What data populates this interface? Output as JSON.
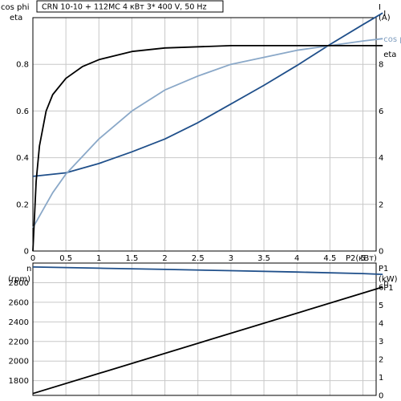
{
  "chart_data": [
    {
      "type": "line",
      "title": "CRN 10-10 + 112MC    4 кВт    3* 400 V, 50 Hz",
      "xlabel": "P2(кВт)",
      "x_ticks": [
        "0",
        "0.5",
        "1",
        "1.5",
        "2",
        "2.5",
        "3",
        "3.5",
        "4",
        "4.5",
        "5"
      ],
      "xlim": [
        0,
        5.2
      ],
      "left_axis": {
        "labels": [
          "cos phi",
          "eta"
        ],
        "ylim": [
          0,
          1.0
        ],
        "ticks": [
          "0",
          "0.2",
          "0.4",
          "0.6",
          "0.8"
        ]
      },
      "right_axis": {
        "labels": [
          "I",
          "(A)"
        ],
        "ylim": [
          0,
          10
        ],
        "ticks": [
          "0",
          "2",
          "4",
          "6",
          "8"
        ]
      },
      "grid": true,
      "series": [
        {
          "name": "I",
          "axis": "right",
          "color": "#1f4f8a",
          "x": [
            0,
            0.5,
            1,
            1.5,
            2,
            2.5,
            3,
            3.5,
            4,
            4.5,
            5,
            5.3
          ],
          "y": [
            3.2,
            3.35,
            3.75,
            4.25,
            4.8,
            5.5,
            6.3,
            7.1,
            7.95,
            8.85,
            9.7,
            10.2
          ]
        },
        {
          "name": "cos phi",
          "axis": "left",
          "color": "#8aa8c8",
          "x": [
            0,
            0.1,
            0.3,
            0.5,
            1,
            1.5,
            2,
            2.5,
            3,
            3.5,
            4,
            4.5,
            5,
            5.3
          ],
          "y": [
            0.1,
            0.15,
            0.25,
            0.33,
            0.48,
            0.6,
            0.69,
            0.75,
            0.8,
            0.83,
            0.86,
            0.88,
            0.9,
            0.91
          ]
        },
        {
          "name": "eta",
          "axis": "left",
          "color": "#000000",
          "x": [
            0,
            0.05,
            0.1,
            0.2,
            0.3,
            0.5,
            0.75,
            1,
            1.5,
            2,
            3,
            4,
            5,
            5.3
          ],
          "y": [
            0,
            0.3,
            0.45,
            0.6,
            0.67,
            0.74,
            0.79,
            0.82,
            0.855,
            0.87,
            0.88,
            0.88,
            0.88,
            0.88
          ]
        }
      ]
    },
    {
      "type": "line",
      "xlim": [
        0,
        5.2
      ],
      "left_axis": {
        "labels": [
          "n",
          "(rpm)"
        ],
        "ylim": [
          1650,
          3000
        ],
        "ticks": [
          "1800",
          "2000",
          "2200",
          "2400",
          "2600",
          "2800"
        ]
      },
      "right_axis": {
        "labels": [
          "P1",
          "(kW)"
        ],
        "ylim": [
          0,
          7.33
        ],
        "ticks": [
          "0",
          "1",
          "2",
          "3",
          "4",
          "5",
          "6"
        ]
      },
      "grid": true,
      "series": [
        {
          "name": "n",
          "axis": "left",
          "color": "#1f4f8a",
          "x": [
            0,
            1,
            2,
            3,
            4,
            5,
            5.3
          ],
          "y": [
            2960,
            2948,
            2935,
            2922,
            2908,
            2893,
            2885
          ]
        },
        {
          "name": "P1",
          "axis": "right",
          "color": "#000000",
          "x": [
            0,
            5.3
          ],
          "y": [
            0.1,
            6.0
          ]
        }
      ]
    }
  ]
}
